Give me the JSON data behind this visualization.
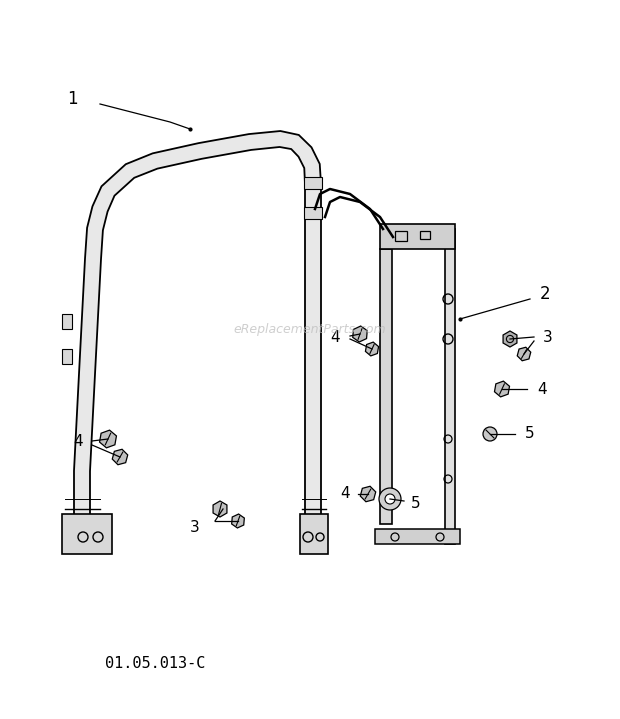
{
  "diagram_code": "01.05.013-C",
  "watermark": "eReplacementParts.com",
  "background_color": "#ffffff",
  "line_color": "#000000",
  "watermark_color": "#bbbbbb",
  "text_color": "#000000",
  "fig_width": 6.2,
  "fig_height": 7.19,
  "dpi": 100
}
